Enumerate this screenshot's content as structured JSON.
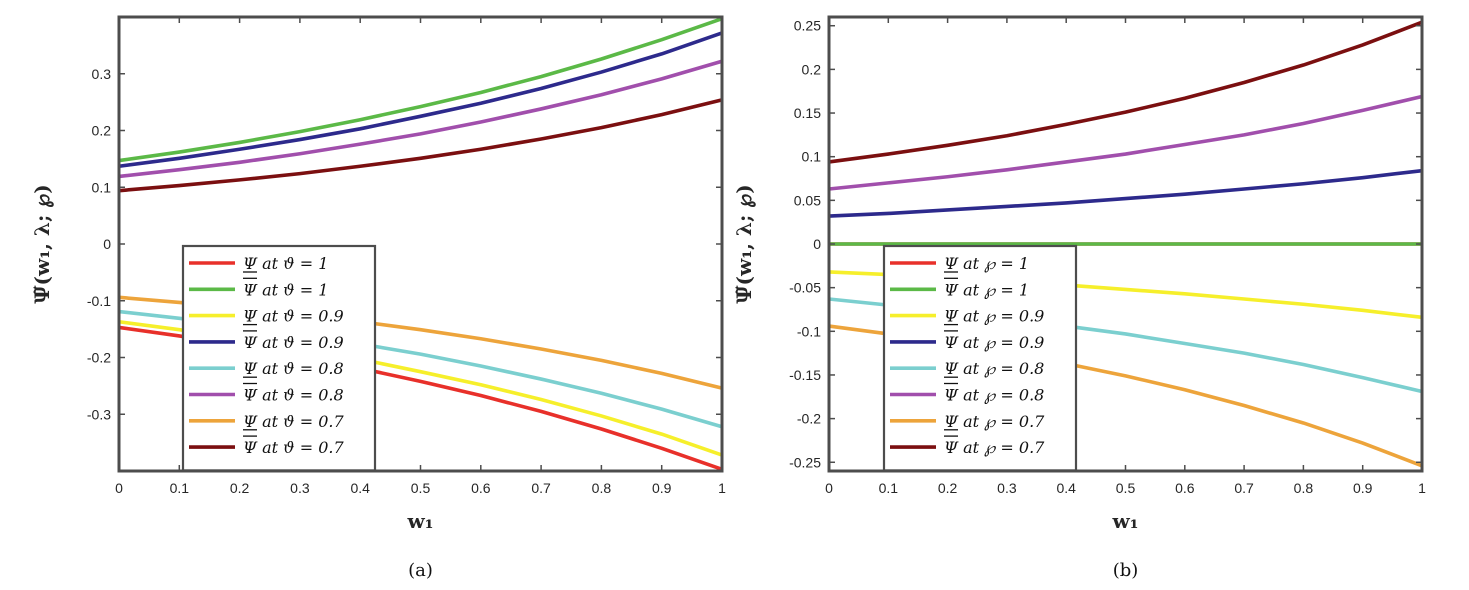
{
  "chart_data": [
    {
      "type": "line",
      "panel_label": "(a)",
      "xlabel": "w₁",
      "ylabel": "Ψ̃(w₁, λ; ℘)",
      "xlim": [
        0,
        1
      ],
      "ylim": [
        -0.4,
        0.4
      ],
      "xticks": [
        "0",
        "0.1",
        "0.2",
        "0.3",
        "0.4",
        "0.5",
        "0.6",
        "0.7",
        "0.8",
        "0.9",
        "1"
      ],
      "yticks": [
        "-0.3",
        "-0.2",
        "-0.1",
        "0",
        "0.1",
        "0.2",
        "0.3"
      ],
      "ytick_values": [
        -0.3,
        -0.2,
        -0.1,
        0,
        0.1,
        0.2,
        0.3
      ],
      "legend_position": "lower-left",
      "x": [
        0,
        0.1,
        0.2,
        0.3,
        0.4,
        0.5,
        0.6,
        0.7,
        0.8,
        0.9,
        1
      ],
      "series": [
        {
          "name": "Ψ at ϑ = 1",
          "bar": "under",
          "color": "#e8302a",
          "values": [
            -0.147,
            -0.162,
            -0.179,
            -0.198,
            -0.219,
            -0.242,
            -0.267,
            -0.295,
            -0.326,
            -0.36,
            -0.397
          ]
        },
        {
          "name": "Ψ at ϑ = 1",
          "bar": "over",
          "color": "#5bb947",
          "values": [
            0.147,
            0.162,
            0.179,
            0.198,
            0.219,
            0.242,
            0.267,
            0.295,
            0.326,
            0.36,
            0.397
          ]
        },
        {
          "name": "Ψ at ϑ = 0.9",
          "bar": "under",
          "color": "#f6ef2b",
          "values": [
            -0.137,
            -0.151,
            -0.167,
            -0.184,
            -0.203,
            -0.225,
            -0.248,
            -0.274,
            -0.303,
            -0.335,
            -0.372
          ]
        },
        {
          "name": "Ψ at ϑ = 0.9",
          "bar": "over",
          "color": "#2d2a8c",
          "values": [
            0.137,
            0.151,
            0.167,
            0.184,
            0.203,
            0.225,
            0.248,
            0.274,
            0.303,
            0.335,
            0.372
          ]
        },
        {
          "name": "Ψ at ϑ = 0.8",
          "bar": "under",
          "color": "#7bcfcf",
          "values": [
            -0.119,
            -0.131,
            -0.144,
            -0.159,
            -0.176,
            -0.194,
            -0.215,
            -0.238,
            -0.263,
            -0.291,
            -0.322
          ]
        },
        {
          "name": "Ψ at ϑ = 0.8",
          "bar": "over",
          "color": "#a14fac",
          "values": [
            0.119,
            0.131,
            0.144,
            0.159,
            0.176,
            0.194,
            0.215,
            0.238,
            0.263,
            0.291,
            0.322
          ]
        },
        {
          "name": "Ψ at ϑ = 0.7",
          "bar": "under",
          "color": "#eda43b",
          "values": [
            -0.094,
            -0.103,
            -0.113,
            -0.124,
            -0.137,
            -0.151,
            -0.167,
            -0.185,
            -0.205,
            -0.228,
            -0.254
          ]
        },
        {
          "name": "Ψ at ϑ = 0.7",
          "bar": "over",
          "color": "#7b0f10",
          "values": [
            0.094,
            0.103,
            0.113,
            0.124,
            0.137,
            0.151,
            0.167,
            0.185,
            0.205,
            0.228,
            0.254
          ]
        }
      ]
    },
    {
      "type": "line",
      "panel_label": "(b)",
      "xlabel": "w₁",
      "ylabel": "Ψ̃(w₁, λ; ℘)",
      "xlim": [
        0,
        1
      ],
      "ylim": [
        -0.26,
        0.26
      ],
      "xticks": [
        "0",
        "0.1",
        "0.2",
        "0.3",
        "0.4",
        "0.5",
        "0.6",
        "0.7",
        "0.8",
        "0.9",
        "1"
      ],
      "yticks": [
        "-0.25",
        "-0.2",
        "-0.15",
        "-0.1",
        "-0.05",
        "0",
        "0.05",
        "0.1",
        "0.15",
        "0.2",
        "0.25"
      ],
      "ytick_values": [
        -0.25,
        -0.2,
        -0.15,
        -0.1,
        -0.05,
        0,
        0.05,
        0.1,
        0.15,
        0.2,
        0.25
      ],
      "legend_position": "lower-left",
      "x": [
        0,
        0.1,
        0.2,
        0.3,
        0.4,
        0.5,
        0.6,
        0.7,
        0.8,
        0.9,
        1
      ],
      "series": [
        {
          "name": "Ψ at ℘ = 1",
          "bar": "under",
          "color": "#e8302a",
          "values": [
            0,
            0,
            0,
            0,
            0,
            0,
            0,
            0,
            0,
            0,
            0
          ]
        },
        {
          "name": "Ψ at ℘ = 1",
          "bar": "over",
          "color": "#5bb947",
          "values": [
            0,
            0,
            0,
            0,
            0,
            0,
            0,
            0,
            0,
            0,
            0
          ]
        },
        {
          "name": "Ψ at ℘ = 0.9",
          "bar": "under",
          "color": "#f6ef2b",
          "values": [
            -0.032,
            -0.035,
            -0.039,
            -0.043,
            -0.047,
            -0.052,
            -0.057,
            -0.063,
            -0.069,
            -0.076,
            -0.084
          ]
        },
        {
          "name": "Ψ at ℘ = 0.9",
          "bar": "over",
          "color": "#2d2a8c",
          "values": [
            0.032,
            0.035,
            0.039,
            0.043,
            0.047,
            0.052,
            0.057,
            0.063,
            0.069,
            0.076,
            0.084
          ]
        },
        {
          "name": "Ψ at ℘ = 0.8",
          "bar": "under",
          "color": "#7bcfcf",
          "values": [
            -0.063,
            -0.07,
            -0.077,
            -0.085,
            -0.094,
            -0.103,
            -0.114,
            -0.125,
            -0.138,
            -0.153,
            -0.169
          ]
        },
        {
          "name": "Ψ at ℘ = 0.8",
          "bar": "over",
          "color": "#a14fac",
          "values": [
            0.063,
            0.07,
            0.077,
            0.085,
            0.094,
            0.103,
            0.114,
            0.125,
            0.138,
            0.153,
            0.169
          ]
        },
        {
          "name": "Ψ at ℘ = 0.7",
          "bar": "under",
          "color": "#eda43b",
          "values": [
            -0.094,
            -0.103,
            -0.113,
            -0.124,
            -0.137,
            -0.151,
            -0.167,
            -0.185,
            -0.205,
            -0.228,
            -0.254
          ]
        },
        {
          "name": "Ψ at ℘ = 0.7",
          "bar": "over",
          "color": "#7b0f10",
          "values": [
            0.094,
            0.103,
            0.113,
            0.124,
            0.137,
            0.151,
            0.167,
            0.185,
            0.205,
            0.228,
            0.254
          ]
        }
      ]
    }
  ]
}
